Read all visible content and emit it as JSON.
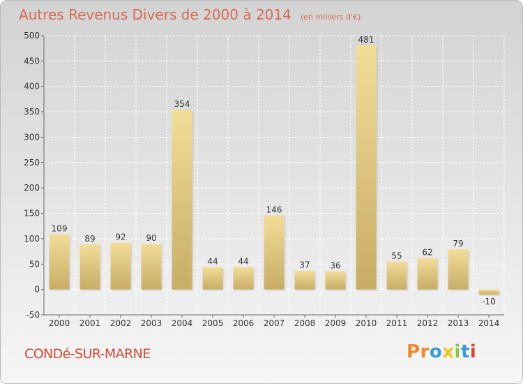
{
  "header": {
    "title": "Autres Revenus Divers de 2000 à 2014",
    "unit": "(en milliers d'€)"
  },
  "footer": {
    "commune": "CONDé-SUR-MARNE",
    "logo": {
      "text": "Proxiti",
      "colors": [
        "#f4862b",
        "#f4862b",
        "#3a9be0",
        "#f5c21a",
        "#8ec63f",
        "#3a9be0",
        "#e0452b"
      ]
    }
  },
  "colors": {
    "bar_top": "#f2dd98",
    "bar_bottom": "#c8ad66",
    "grid": "#ffffff",
    "axis": "#666666",
    "title": "#d86a51",
    "commune": "#d04b39"
  },
  "chart_data": {
    "type": "bar",
    "title": "Autres Revenus Divers de 2000 à 2014",
    "subtitle": "(en milliers d'€)",
    "categories": [
      "2000",
      "2001",
      "2002",
      "2003",
      "2004",
      "2005",
      "2006",
      "2007",
      "2008",
      "2009",
      "2010",
      "2011",
      "2012",
      "2013",
      "2014"
    ],
    "values": [
      109,
      89,
      92,
      90,
      354,
      44,
      44,
      146,
      37,
      36,
      481,
      55,
      62,
      79,
      -10
    ],
    "ylim": [
      -50,
      500
    ],
    "yticks": [
      -50,
      0,
      50,
      100,
      150,
      200,
      250,
      300,
      350,
      400,
      450,
      500
    ],
    "grid": true,
    "data_labels": true
  }
}
